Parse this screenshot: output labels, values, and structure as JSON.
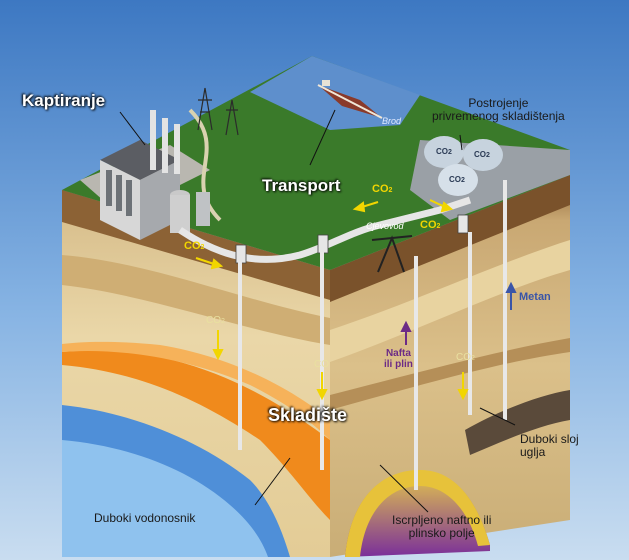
{
  "labels": {
    "capture": "Kaptiranje",
    "transport": "Transport",
    "storage": "Skladište",
    "ship": "Brod",
    "pipeline": "Cjevovod",
    "interim_storage_line1": "Postrojenje",
    "interim_storage_line2": "privremenog skladištenja",
    "methane": "Metan",
    "oil_gas_line1": "Nafta",
    "oil_gas_line2": "ili plin",
    "deep_coal_line1": "Duboki sloj",
    "deep_coal_line2": "uglja",
    "deep_aquifer": "Duboki vodonosnik",
    "depleted_field_line1": "Iscrpljeno naftno ili",
    "depleted_field_line2": "plinsko polje",
    "co2_main": "CO",
    "co2_sub": "2",
    "co2_flat": "CO",
    "tank_co2": "CO",
    "tank_sub": "2"
  },
  "colors": {
    "sky_top": "#3d78c2",
    "sky_bottom": "#bcd6ef",
    "grass": "#3a7a2a",
    "sea": "#5e8fcc",
    "co2_arrow": "#f2d600",
    "methane_arrow": "#3a55a8",
    "oil_arrow": "#6c2b86",
    "aquifer_blue": "#4f8fd8",
    "orange_layer": "#f08a1c"
  },
  "icons": [
    "factory-icon",
    "power-pylon-icon",
    "ship-icon",
    "storage-tank-icon",
    "wellhead-icon",
    "pumpjack-icon"
  ]
}
